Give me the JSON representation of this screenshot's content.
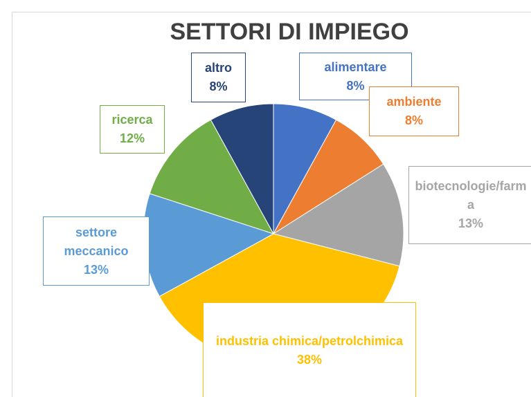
{
  "chart_data": {
    "type": "pie",
    "title": "SETTORI DI IMPIEGO",
    "categories": [
      "alimentare",
      "ambiente",
      "biotecnologie/farma",
      "industria chimica/petrolchimica",
      "settore meccanico",
      "ricerca",
      "altro"
    ],
    "values": [
      8,
      8,
      13,
      38,
      13,
      12,
      8
    ],
    "value_labels": [
      "8%",
      "8%",
      "13%",
      "38%",
      "13%",
      "12%",
      "8%"
    ],
    "colors": [
      "#4472c4",
      "#ed7d31",
      "#a5a5a5",
      "#ffc000",
      "#5b9bd5",
      "#70ad47",
      "#264478"
    ]
  }
}
